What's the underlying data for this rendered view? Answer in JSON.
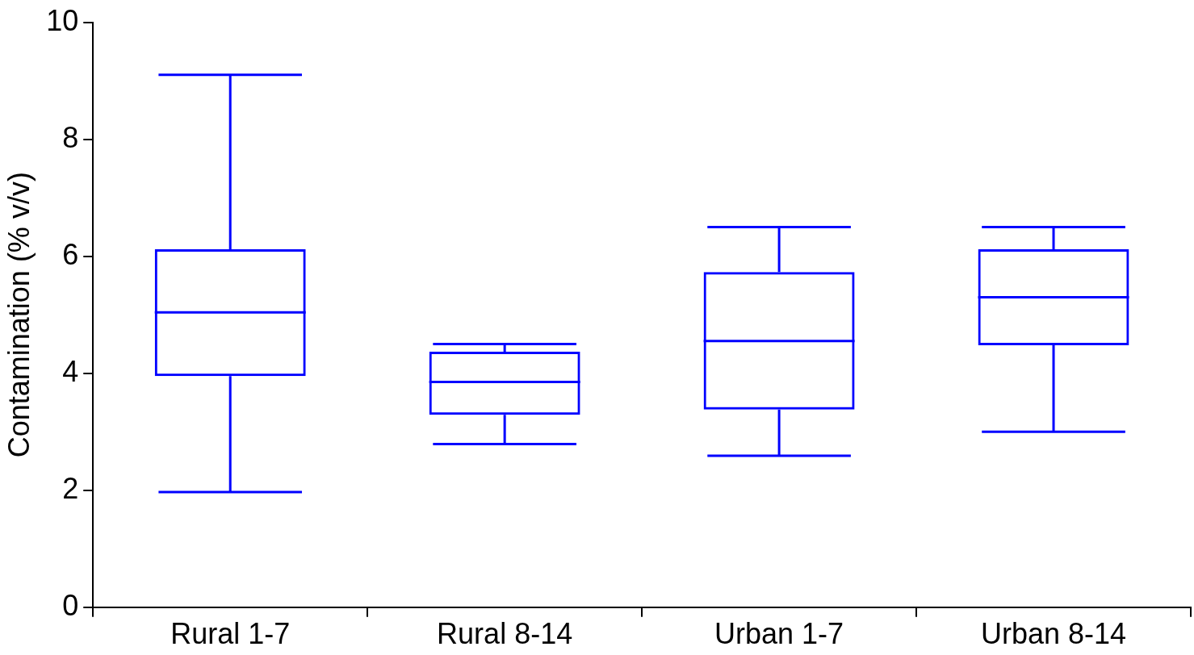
{
  "chart_data": {
    "type": "box",
    "ylabel": "Contamination (% v/v)",
    "categories": [
      "Rural 1-7",
      "Rural 8-14",
      "Urban 1-7",
      "Urban 8-14"
    ],
    "ylim": [
      0,
      10
    ],
    "yticks": [
      0,
      2,
      4,
      6,
      8,
      10
    ],
    "series": [
      {
        "color": "#0000ff",
        "boxes": [
          {
            "low": 1.97,
            "q1": 3.95,
            "median": 5.04,
            "q3": 6.12,
            "high": 9.1
          },
          {
            "low": 2.79,
            "q1": 3.29,
            "median": 3.85,
            "q3": 4.37,
            "high": 4.5
          },
          {
            "low": 2.59,
            "q1": 3.38,
            "median": 4.55,
            "q3": 5.73,
            "high": 6.5
          },
          {
            "low": 3.0,
            "q1": 4.48,
            "median": 5.3,
            "q3": 6.12,
            "high": 6.5
          }
        ]
      }
    ]
  }
}
